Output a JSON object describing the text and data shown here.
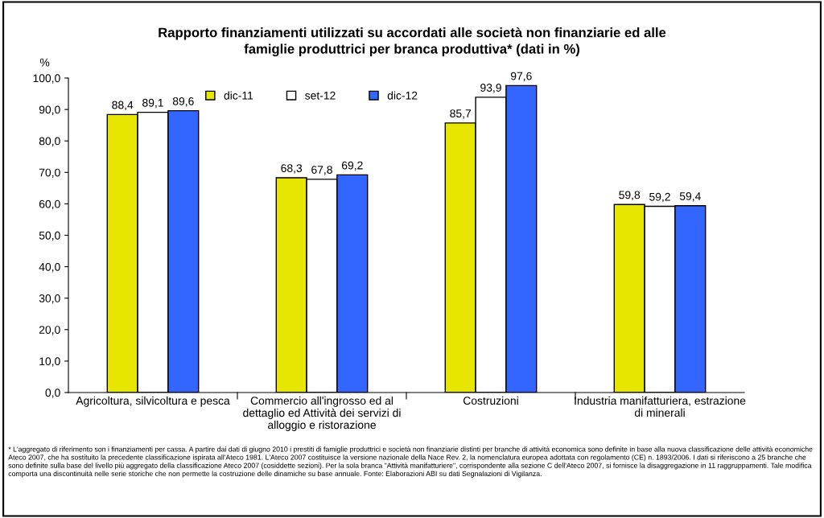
{
  "chart_data": {
    "type": "bar",
    "title": "Rapporto finanziamenti utilizzati su accordati alle società non finanziarie ed alle\nfamiglie produttrici per branca produttiva* (dati in %)",
    "ylabel": "%",
    "categories": [
      "Agricoltura, silvicoltura e pesca",
      "Commercio all'ingrosso ed al\ndettaglio ed Attività dei servizi di\nalloggio e ristorazione",
      "Costruzioni",
      "Industria manifatturiera, estrazione\ndi minerali"
    ],
    "series": [
      {
        "name": "dic-11",
        "color": "#e6e600",
        "values": [
          88.4,
          68.3,
          85.7,
          59.8
        ],
        "value_labels": [
          "88,4",
          "68,3",
          "85,7",
          "59,8"
        ]
      },
      {
        "name": "set-12",
        "color": "#ffffff",
        "values": [
          89.1,
          67.8,
          93.9,
          59.2
        ],
        "value_labels": [
          "89,1",
          "67,8",
          "93,9",
          "59,2"
        ]
      },
      {
        "name": "dic-12",
        "color": "#3366ff",
        "values": [
          89.6,
          69.2,
          97.6,
          59.4
        ],
        "value_labels": [
          "89,6",
          "69,2",
          "97,6",
          "59,4"
        ]
      }
    ],
    "ylim": [
      0,
      100
    ],
    "yticks": [
      {
        "value": 0,
        "label": "0,0"
      },
      {
        "value": 10,
        "label": "10,0"
      },
      {
        "value": 20,
        "label": "20,0"
      },
      {
        "value": 30,
        "label": "30,0"
      },
      {
        "value": 40,
        "label": "40,0"
      },
      {
        "value": 50,
        "label": "50,0"
      },
      {
        "value": 60,
        "label": "60,0"
      },
      {
        "value": 70,
        "label": "70,0"
      },
      {
        "value": 80,
        "label": "80,0"
      },
      {
        "value": 90,
        "label": "90,0"
      },
      {
        "value": 100,
        "label": "100,0"
      }
    ],
    "grid": false,
    "legend": "top",
    "annotations": [
      "* L'aggregato di riferimento son i finanziamenti per cassa. A partire dai dati di giugno 2010 i prestiti di famiglie produttrici e società non finanziarie distinti per branche di attività economica sono definite in base alla nuova classificazione delle attività economiche Ateco 2007, che ha sostituito la precedente classificazione ispirata all'Ateco 1981. L'Ateco 2007 costituisce la versione nazionale della Nace Rev. 2, la nomenclatura europea adottata con regolamento (CE) n. 1893/2006. I dati si riferiscono a 25 branche che sono definite sulla base del livello più aggregato della classificazione Ateco 2007 (cosiddette sezioni). Per la sola branca \"Attività manifatturiere\", corrispondente alla sezione C dell'Ateco 2007, si fornisce la disaggregazione in 11 raggruppamenti. Tale modifica comporta una discontinuità nelle serie storiche che non permette la costruzione delle dinamiche su base annuale. Fonte: Elaborazioni ABI su dati Segnalazioni di Vigilanza."
    ]
  }
}
